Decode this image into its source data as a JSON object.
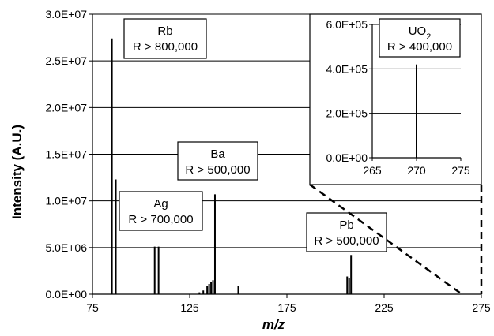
{
  "chart_data": [
    {
      "type": "bar",
      "xlabel": "m/z",
      "ylabel": "Intensity (A.U.)",
      "xlim": [
        75,
        275
      ],
      "ylim": [
        0,
        30000000
      ],
      "xticks": [
        "75",
        "125",
        "175",
        "225",
        "275"
      ],
      "yticks": [
        "0.0E+00",
        "5.0E+06",
        "1.0E+07",
        "1.5E+07",
        "2.0E+07",
        "2.5E+07",
        "3.0E+07"
      ],
      "grid": "horizontal",
      "peaks": [
        {
          "x": 85,
          "y": 27400000
        },
        {
          "x": 87,
          "y": 12300000
        },
        {
          "x": 107,
          "y": 5100000
        },
        {
          "x": 109,
          "y": 5100000
        },
        {
          "x": 130,
          "y": 200000
        },
        {
          "x": 132,
          "y": 400000
        },
        {
          "x": 134,
          "y": 900000
        },
        {
          "x": 135,
          "y": 1100000
        },
        {
          "x": 136,
          "y": 1300000
        },
        {
          "x": 137,
          "y": 1500000
        },
        {
          "x": 138,
          "y": 10700000
        },
        {
          "x": 150,
          "y": 900000
        },
        {
          "x": 206,
          "y": 1900000
        },
        {
          "x": 207,
          "y": 1700000
        },
        {
          "x": 208,
          "y": 4200000
        }
      ],
      "annotations": [
        {
          "element": "Rb",
          "resolution": "R > 800,000"
        },
        {
          "element": "Ba",
          "resolution": "R > 500,000"
        },
        {
          "element": "Ag",
          "resolution": "R > 700,000"
        },
        {
          "element": "Pb",
          "resolution": "R > 500,000"
        }
      ]
    },
    {
      "type": "bar",
      "inset": true,
      "xlim": [
        265,
        275
      ],
      "ylim": [
        0,
        600000
      ],
      "xticks": [
        "265",
        "270",
        "275"
      ],
      "yticks": [
        "0.0E+00",
        "2.0E+05",
        "4.0E+05",
        "6.0E+05"
      ],
      "grid": "horizontal",
      "peaks": [
        {
          "x": 270,
          "y": 420000
        }
      ],
      "annotation": {
        "element": "UO",
        "subscript": "2",
        "resolution": "R > 400,000"
      }
    }
  ]
}
